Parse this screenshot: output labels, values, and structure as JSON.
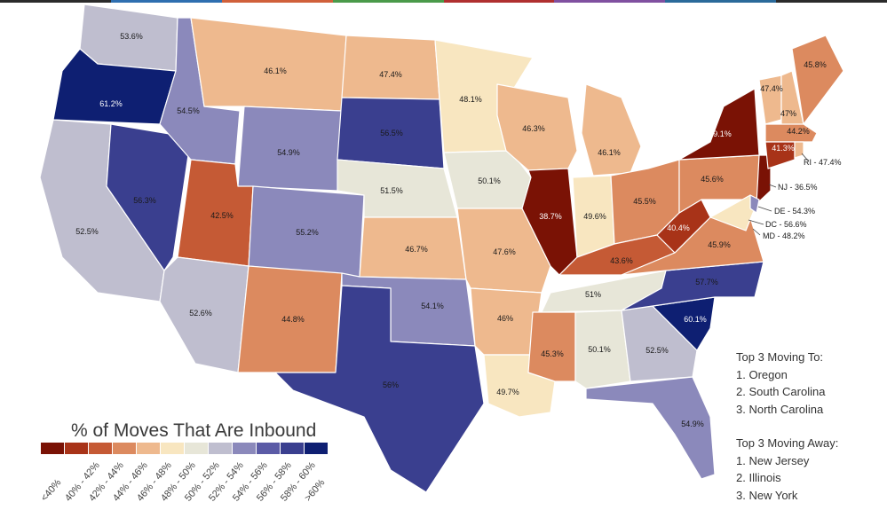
{
  "legend": {
    "title": "% of Moves That Are Inbound",
    "bins": [
      {
        "label": "<40%",
        "color": "#7a1205"
      },
      {
        "label": "40% - 42%",
        "color": "#a83318"
      },
      {
        "label": "42% - 44%",
        "color": "#c55a35"
      },
      {
        "label": "44% - 46%",
        "color": "#dc8a5f"
      },
      {
        "label": "46% - 48%",
        "color": "#eeb98e"
      },
      {
        "label": "48% - 50%",
        "color": "#f8e6c0"
      },
      {
        "label": "50% - 52%",
        "color": "#e7e6d8"
      },
      {
        "label": "52% - 54%",
        "color": "#bfbecf"
      },
      {
        "label": "54% - 56%",
        "color": "#8b89bb"
      },
      {
        "label": "56% - 58%",
        "color": "#5b5ba6"
      },
      {
        "label": "58% - 60%",
        "color": "#3a3f8f"
      },
      {
        "label": ">60%",
        "color": "#0e1f72"
      }
    ]
  },
  "states": {
    "WA": "53.6%",
    "OR": "61.2%",
    "CA": "52.5%",
    "NV": "56.3%",
    "ID": "54.5%",
    "MT": "46.1%",
    "WY": "54.9%",
    "UT": "42.5%",
    "AZ": "52.6%",
    "CO": "55.2%",
    "NM": "44.8%",
    "ND": "47.4%",
    "SD": "56.5%",
    "NE": "51.5%",
    "KS": "46.7%",
    "OK": "54.1%",
    "TX": "56%",
    "MN": "48.1%",
    "IA": "50.1%",
    "MO": "47.6%",
    "AR": "46%",
    "LA": "49.7%",
    "WI": "46.3%",
    "IL": "38.7%",
    "MI": "46.1%",
    "IN": "49.6%",
    "OH": "45.5%",
    "KY": "43.6%",
    "TN": "51%",
    "MS": "45.3%",
    "AL": "50.1%",
    "GA": "52.5%",
    "FL": "54.9%",
    "SC": "60.1%",
    "NC": "57.7%",
    "VA": "45.9%",
    "WV": "40.4%",
    "PA": "45.6%",
    "NY": "39.1%",
    "VT": "47.4%",
    "NH": "47%",
    "ME": "45.8%",
    "MA": "44.2%",
    "CT": "41.3%",
    "RI": "RI - 47.4%",
    "NJ": "NJ - 36.5%",
    "DE": "DE - 54.3%",
    "DC": "DC - 56.6%",
    "MD": "MD - 48.2%"
  },
  "top_to": {
    "title": "Top 3 Moving To:",
    "items": [
      "1. Oregon",
      "2. South Carolina",
      "3. North Carolina"
    ]
  },
  "top_away": {
    "title": "Top 3 Moving Away:",
    "items": [
      "1. New Jersey",
      "2. Illinois",
      "3. New York"
    ]
  },
  "colors": {
    "topbar": [
      "#2a2a2a",
      "#2f6fb0",
      "#d0603a",
      "#4a9a4a",
      "#b03030",
      "#8050a0",
      "#2a6a9a",
      "#2a2a2a"
    ]
  }
}
